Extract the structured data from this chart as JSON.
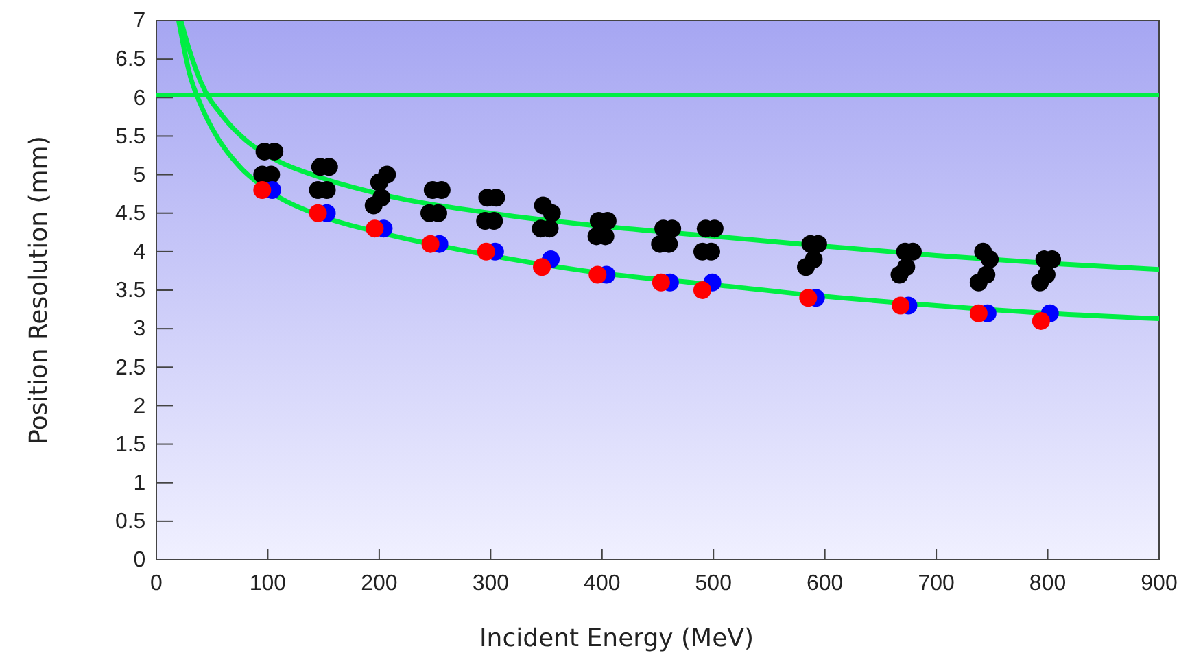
{
  "chart_data": {
    "type": "scatter",
    "xlabel": "Incident Energy (MeV)",
    "ylabel": "Position Resolution (mm)",
    "xlim": [
      0,
      900
    ],
    "ylim": [
      0,
      7
    ],
    "xticks": [
      0,
      100,
      200,
      300,
      400,
      500,
      600,
      700,
      800,
      900
    ],
    "yticks": [
      0,
      0.5,
      1,
      1.5,
      2,
      2.5,
      3,
      3.5,
      4,
      4.5,
      5,
      5.5,
      6,
      6.5,
      7
    ],
    "grid": false,
    "marker": "circle",
    "ref_lines": [
      {
        "axis": "y",
        "value": 6.03,
        "color": "#00ee44"
      }
    ],
    "series": [
      {
        "color": "#000000",
        "x": [
          95,
          103,
          97,
          106,
          145,
          153,
          147,
          155,
          195,
          202,
          200,
          207,
          245,
          253,
          248,
          256,
          295,
          303,
          297,
          305,
          345,
          353,
          347,
          355,
          395,
          403,
          397,
          405,
          452,
          460,
          455,
          463,
          490,
          498,
          493,
          501,
          583,
          590,
          587,
          594,
          667,
          673,
          672,
          679,
          738,
          745,
          742,
          748,
          793,
          799,
          797,
          804
        ],
        "values": [
          5.0,
          5.0,
          5.3,
          5.3,
          4.8,
          4.8,
          5.1,
          5.1,
          4.6,
          4.7,
          4.9,
          5.0,
          4.5,
          4.5,
          4.8,
          4.8,
          4.4,
          4.4,
          4.7,
          4.7,
          4.3,
          4.3,
          4.6,
          4.5,
          4.2,
          4.2,
          4.4,
          4.4,
          4.1,
          4.1,
          4.3,
          4.3,
          4.0,
          4.0,
          4.3,
          4.3,
          3.8,
          3.9,
          4.1,
          4.1,
          3.7,
          3.8,
          4.0,
          4.0,
          3.6,
          3.7,
          4.0,
          3.9,
          3.6,
          3.7,
          3.9,
          3.9
        ]
      },
      {
        "color": "#0000ff",
        "x": [
          104,
          153,
          204,
          254,
          304,
          354,
          404,
          461,
          499,
          592,
          675,
          746,
          802
        ],
        "values": [
          4.8,
          4.5,
          4.3,
          4.1,
          4.0,
          3.9,
          3.7,
          3.6,
          3.6,
          3.4,
          3.3,
          3.2,
          3.2
        ]
      },
      {
        "color": "#ff0000",
        "x": [
          95,
          145,
          196,
          246,
          296,
          346,
          396,
          453,
          490,
          585,
          668,
          738,
          794
        ],
        "values": [
          4.8,
          4.5,
          4.3,
          4.1,
          4.0,
          3.8,
          3.7,
          3.6,
          3.5,
          3.4,
          3.3,
          3.2,
          3.1
        ]
      },
      {
        "type": "line",
        "color": "#00ee44",
        "marker": "none",
        "x": [
          20,
          30,
          40,
          50,
          75,
          100,
          150,
          200,
          300,
          400,
          500,
          600,
          700,
          800,
          900
        ],
        "values": [
          7.0,
          6.3,
          5.9,
          5.6,
          5.1,
          4.8,
          4.45,
          4.25,
          3.95,
          3.72,
          3.57,
          3.42,
          3.3,
          3.2,
          3.13
        ]
      },
      {
        "type": "line",
        "color": "#00ee44",
        "marker": "none",
        "x": [
          22,
          30,
          40,
          60,
          80,
          100,
          150,
          200,
          300,
          400,
          500,
          600,
          700,
          800,
          900
        ],
        "values": [
          7.0,
          6.6,
          6.2,
          5.75,
          5.45,
          5.25,
          4.95,
          4.75,
          4.5,
          4.33,
          4.2,
          4.07,
          3.95,
          3.85,
          3.77
        ]
      }
    ]
  }
}
